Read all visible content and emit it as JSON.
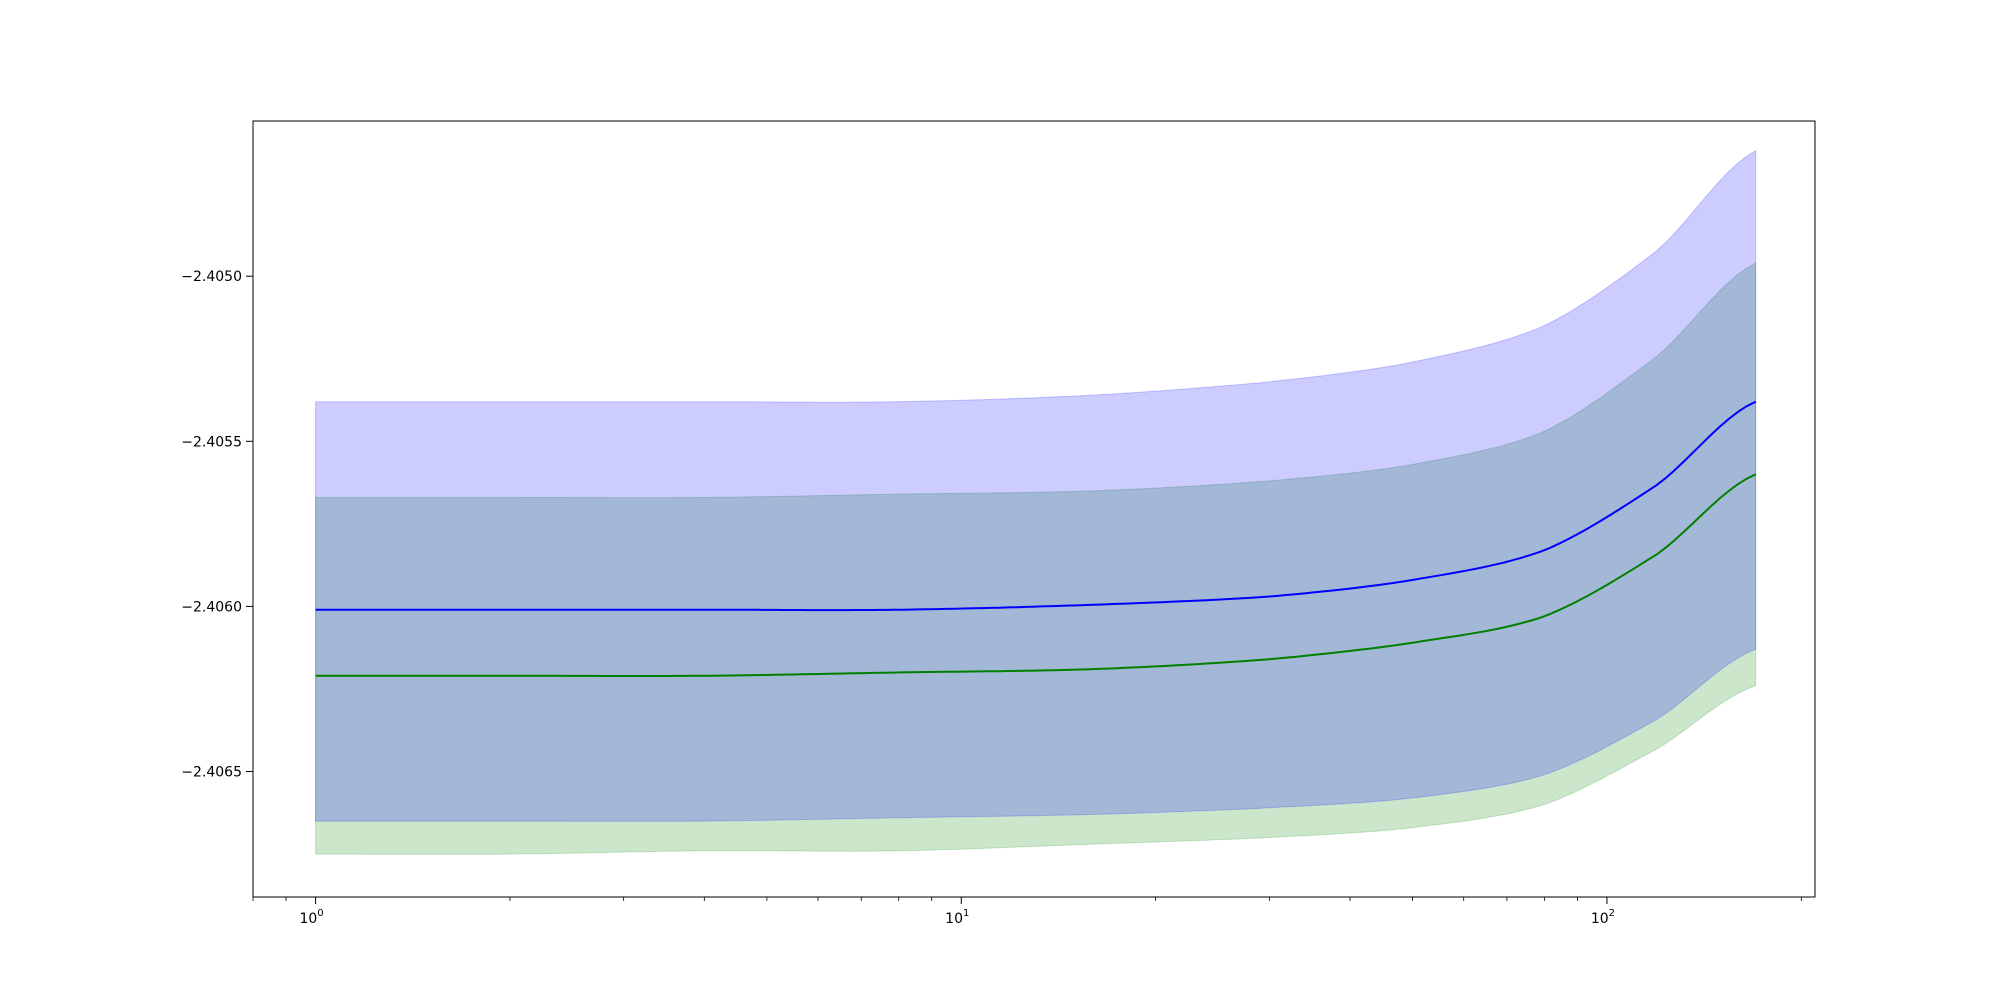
{
  "chart_data": {
    "type": "line",
    "xscale": "log",
    "xlim": [
      0.8,
      210
    ],
    "ylim": [
      -2.40688,
      -2.40453
    ],
    "grid": false,
    "legend": "none",
    "x_ticks": [
      {
        "value": 1,
        "base": "10",
        "exp": "0"
      },
      {
        "value": 10,
        "base": "10",
        "exp": "1"
      },
      {
        "value": 100,
        "base": "10",
        "exp": "2"
      }
    ],
    "y_ticks": [
      {
        "value": -2.405,
        "label": "−2.4050"
      },
      {
        "value": -2.4055,
        "label": "−2.4055"
      },
      {
        "value": -2.406,
        "label": "−2.4060"
      },
      {
        "value": -2.4065,
        "label": "−2.4065"
      }
    ],
    "x": [
      1,
      2,
      4,
      8,
      16,
      30,
      50,
      80,
      120,
      170
    ],
    "series": [
      {
        "color": "#0000ff",
        "band_color": "#0000ff",
        "band_opacity": 0.2,
        "values": [
          -2.40601,
          -2.40601,
          -2.40601,
          -2.40601,
          -2.405995,
          -2.40597,
          -2.40592,
          -2.40583,
          -2.40563,
          -2.40538
        ],
        "upper": [
          -2.40538,
          -2.40538,
          -2.40538,
          -2.40538,
          -2.40536,
          -2.40532,
          -2.40526,
          -2.40515,
          -2.40492,
          -2.40462
        ],
        "lower": [
          -2.40665,
          -2.40665,
          -2.40665,
          -2.40664,
          -2.40663,
          -2.40661,
          -2.40658,
          -2.40651,
          -2.40634,
          -2.40613
        ]
      },
      {
        "color": "#008000",
        "band_color": "#008000",
        "band_opacity": 0.2,
        "values": [
          -2.40621,
          -2.40621,
          -2.40621,
          -2.4062,
          -2.40619,
          -2.40616,
          -2.40611,
          -2.40603,
          -2.40584,
          -2.4056
        ],
        "upper": [
          -2.40567,
          -2.40567,
          -2.40567,
          -2.40566,
          -2.40565,
          -2.40562,
          -2.40557,
          -2.40547,
          -2.40524,
          -2.40496
        ],
        "lower": [
          -2.40675,
          -2.40675,
          -2.40674,
          -2.40674,
          -2.40672,
          -2.4067,
          -2.40667,
          -2.4066,
          -2.40643,
          -2.40624
        ]
      }
    ]
  }
}
